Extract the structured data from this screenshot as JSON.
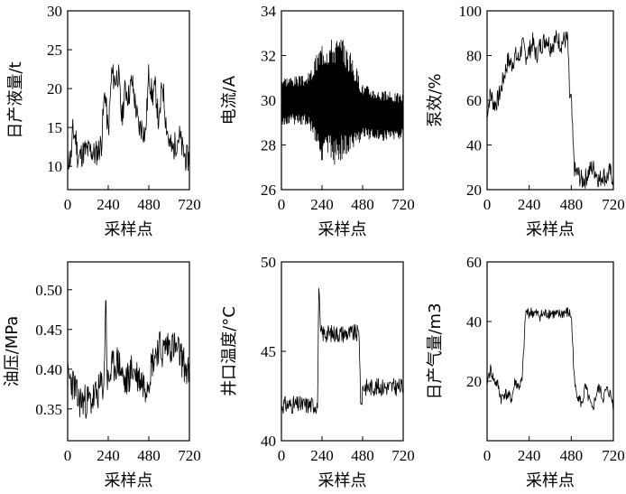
{
  "chart_data": [
    {
      "type": "line",
      "ylabel": "日产液量/t",
      "xlabel": "采样点",
      "xticks": [
        "0",
        "240",
        "480",
        "720"
      ],
      "yticks": [
        "10",
        "15",
        "20",
        "25",
        "30"
      ],
      "ylim": [
        7,
        30
      ],
      "anchors": [
        [
          0,
          11
        ],
        [
          20,
          11
        ],
        [
          30,
          14.5
        ],
        [
          50,
          13.5
        ],
        [
          60,
          11
        ],
        [
          100,
          12
        ],
        [
          140,
          12
        ],
        [
          160,
          11.5
        ],
        [
          180,
          12
        ],
        [
          200,
          13
        ],
        [
          220,
          20
        ],
        [
          240,
          14
        ],
        [
          260,
          22
        ],
        [
          280,
          21
        ],
        [
          300,
          22
        ],
        [
          320,
          16
        ],
        [
          340,
          20
        ],
        [
          360,
          19
        ],
        [
          380,
          21
        ],
        [
          400,
          18
        ],
        [
          420,
          15
        ],
        [
          440,
          15
        ],
        [
          460,
          14
        ],
        [
          480,
          22
        ],
        [
          500,
          19
        ],
        [
          520,
          20
        ],
        [
          540,
          15
        ],
        [
          560,
          21
        ],
        [
          580,
          16
        ],
        [
          600,
          13
        ],
        [
          620,
          12
        ],
        [
          660,
          14
        ],
        [
          680,
          12
        ],
        [
          700,
          11
        ],
        [
          720,
          11
        ]
      ],
      "amp": 3.5,
      "seed": 11
    },
    {
      "type": "line",
      "ylabel": "电流/A",
      "xlabel": "采样点",
      "xticks": [
        "0",
        "240",
        "480",
        "720"
      ],
      "yticks": [
        "26",
        "28",
        "30",
        "32",
        "34"
      ],
      "ylim": [
        26,
        34
      ],
      "anchors": [
        [
          0,
          30
        ],
        [
          100,
          30
        ],
        [
          200,
          30
        ],
        [
          260,
          30
        ],
        [
          360,
          30
        ],
        [
          480,
          29.5
        ],
        [
          600,
          29.3
        ],
        [
          720,
          29.3
        ]
      ],
      "amp": [
        [
          0,
          2.2
        ],
        [
          150,
          2.2
        ],
        [
          180,
          3
        ],
        [
          240,
          5.5
        ],
        [
          330,
          5.8
        ],
        [
          400,
          5
        ],
        [
          480,
          2.5
        ],
        [
          720,
          2
        ]
      ],
      "seed": 3,
      "dense": true
    },
    {
      "type": "line",
      "ylabel": "泵效/%",
      "xlabel": "采样点",
      "xticks": [
        "0",
        "240",
        "480",
        "720"
      ],
      "yticks": [
        "20",
        "40",
        "60",
        "80",
        "100"
      ],
      "ylim": [
        20,
        100
      ],
      "anchors": [
        [
          0,
          55
        ],
        [
          20,
          63
        ],
        [
          40,
          58
        ],
        [
          60,
          60
        ],
        [
          80,
          65
        ],
        [
          100,
          72
        ],
        [
          120,
          78
        ],
        [
          140,
          76
        ],
        [
          160,
          80
        ],
        [
          180,
          78
        ],
        [
          200,
          85
        ],
        [
          220,
          80
        ],
        [
          240,
          82
        ],
        [
          260,
          86
        ],
        [
          280,
          80
        ],
        [
          300,
          84
        ],
        [
          320,
          86
        ],
        [
          340,
          88
        ],
        [
          360,
          84
        ],
        [
          380,
          86
        ],
        [
          400,
          88
        ],
        [
          420,
          85
        ],
        [
          440,
          87
        ],
        [
          460,
          87
        ],
        [
          470,
          62
        ],
        [
          480,
          60
        ],
        [
          490,
          40
        ],
        [
          500,
          28
        ],
        [
          520,
          27
        ],
        [
          540,
          24
        ],
        [
          560,
          25
        ],
        [
          580,
          28
        ],
        [
          600,
          30
        ],
        [
          620,
          28
        ],
        [
          640,
          24
        ],
        [
          660,
          27
        ],
        [
          680,
          25
        ],
        [
          700,
          28
        ],
        [
          720,
          25
        ]
      ],
      "amp": 9,
      "seed": 7
    },
    {
      "type": "line",
      "ylabel": "油压/MPa",
      "xlabel": "采样点",
      "xticks": [
        "0",
        "240",
        "480",
        "720"
      ],
      "yticks": [
        "0.35",
        "0.40",
        "0.45",
        "0.50"
      ],
      "ylim": [
        0.31,
        0.535
      ],
      "anchors": [
        [
          0,
          0.39
        ],
        [
          40,
          0.38
        ],
        [
          60,
          0.36
        ],
        [
          100,
          0.36
        ],
        [
          140,
          0.36
        ],
        [
          180,
          0.37
        ],
        [
          200,
          0.38
        ],
        [
          215,
          0.38
        ],
        [
          225,
          0.5
        ],
        [
          235,
          0.38
        ],
        [
          260,
          0.4
        ],
        [
          300,
          0.41
        ],
        [
          340,
          0.38
        ],
        [
          380,
          0.4
        ],
        [
          420,
          0.39
        ],
        [
          460,
          0.38
        ],
        [
          480,
          0.39
        ],
        [
          500,
          0.41
        ],
        [
          540,
          0.43
        ],
        [
          560,
          0.42
        ],
        [
          580,
          0.43
        ],
        [
          600,
          0.43
        ],
        [
          620,
          0.43
        ],
        [
          660,
          0.42
        ],
        [
          700,
          0.4
        ],
        [
          720,
          0.39
        ]
      ],
      "amp": 0.045,
      "seed": 23
    },
    {
      "type": "line",
      "ylabel": "井口温度/°C",
      "xlabel": "采样点",
      "xticks": [
        "0",
        "240",
        "480",
        "720"
      ],
      "yticks": [
        "40",
        "45",
        "50"
      ],
      "ylim": [
        40,
        50
      ],
      "anchors": [
        [
          0,
          42
        ],
        [
          100,
          42
        ],
        [
          200,
          42
        ],
        [
          215,
          42
        ],
        [
          220,
          49
        ],
        [
          230,
          46
        ],
        [
          300,
          46
        ],
        [
          400,
          46
        ],
        [
          460,
          46
        ],
        [
          470,
          41.5
        ],
        [
          480,
          43
        ],
        [
          560,
          43
        ],
        [
          640,
          43
        ],
        [
          720,
          43
        ]
      ],
      "amp": 1.0,
      "seed": 31
    },
    {
      "type": "line",
      "ylabel": "日产气量/m3",
      "xlabel": "采样点",
      "xticks": [
        "0",
        "240",
        "480",
        "720"
      ],
      "yticks": [
        "20",
        "40",
        "60"
      ],
      "ylim": [
        0,
        60
      ],
      "anchors": [
        [
          0,
          20
        ],
        [
          20,
          24
        ],
        [
          40,
          20
        ],
        [
          60,
          19
        ],
        [
          80,
          14
        ],
        [
          100,
          16
        ],
        [
          140,
          14
        ],
        [
          160,
          20
        ],
        [
          180,
          18
        ],
        [
          200,
          20
        ],
        [
          220,
          43
        ],
        [
          260,
          43
        ],
        [
          300,
          42
        ],
        [
          360,
          43
        ],
        [
          400,
          42
        ],
        [
          440,
          43
        ],
        [
          460,
          43
        ],
        [
          480,
          42
        ],
        [
          500,
          18
        ],
        [
          520,
          15
        ],
        [
          540,
          12
        ],
        [
          560,
          18
        ],
        [
          580,
          14
        ],
        [
          600,
          10
        ],
        [
          620,
          15
        ],
        [
          640,
          18
        ],
        [
          660,
          14
        ],
        [
          680,
          17
        ],
        [
          700,
          16
        ],
        [
          720,
          12
        ]
      ],
      "amp": 4,
      "seed": 41
    }
  ]
}
